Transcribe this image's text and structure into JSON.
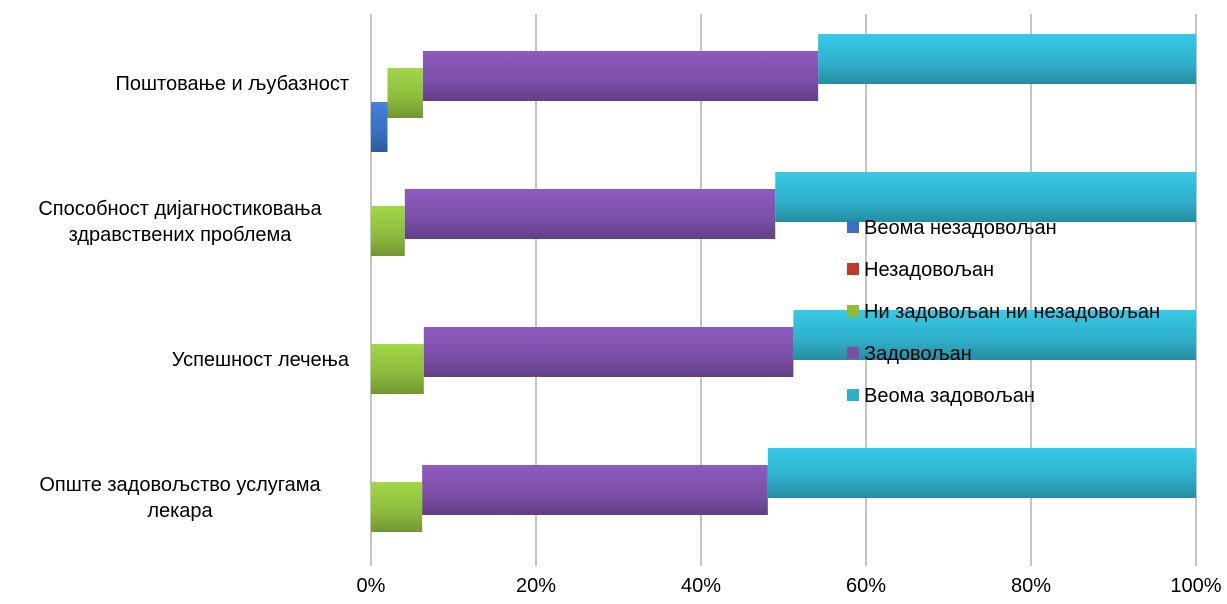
{
  "chart_data": {
    "type": "bar",
    "orientation": "horizontal",
    "stacked": "percent",
    "title": "",
    "xlabel": "",
    "ylabel": "",
    "xlim": [
      0,
      100
    ],
    "x_ticks": [
      "0%",
      "20%",
      "40%",
      "60%",
      "80%",
      "100%"
    ],
    "grid": "vertical",
    "legend_position": "right",
    "categories": [
      [
        "Поштовање и љубазност"
      ],
      [
        "Способност дијагностиковања",
        "здравствених проблема"
      ],
      [
        "Успешност лечења"
      ],
      [
        "Опште задовољство услугама",
        "лекара"
      ]
    ],
    "series": [
      {
        "name": "Веома незадовољан",
        "color": "#3B6FC0",
        "values": [
          2,
          0,
          0,
          0
        ]
      },
      {
        "name": "Незадовољан",
        "color": "#C0392B",
        "values": [
          0,
          0,
          0,
          0
        ]
      },
      {
        "name": "Ни задовољан ни незадовољан",
        "color": "#8DBB3E",
        "values": [
          4.3,
          4.1,
          6.4,
          6.2
        ]
      },
      {
        "name": "Задовољан",
        "color": "#7B4FA6",
        "values": [
          47.9,
          44.9,
          44.8,
          41.9
        ]
      },
      {
        "name": "Веома задовољан",
        "color": "#2FAFC9",
        "values": [
          45.8,
          51,
          48.8,
          51.9
        ]
      }
    ]
  }
}
